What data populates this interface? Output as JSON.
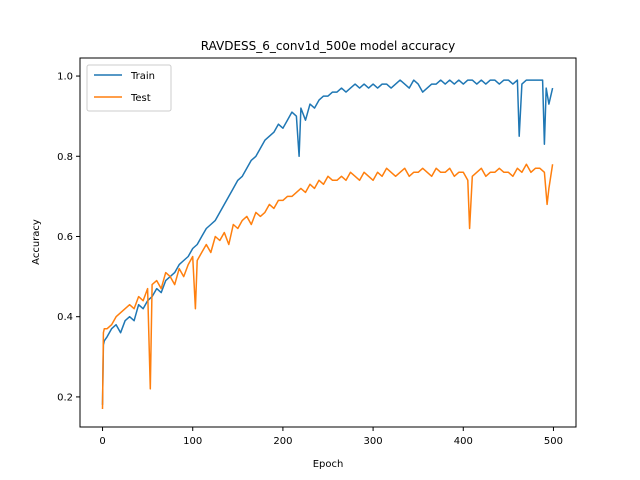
{
  "chart_data": {
    "type": "line",
    "title": "RAVDESS_6_conv1d_500e model accuracy",
    "xlabel": "Epoch",
    "ylabel": "Accuracy",
    "xlim": [
      -25,
      525
    ],
    "ylim": [
      0.125,
      1.045
    ],
    "xticks": [
      0,
      100,
      200,
      300,
      400,
      500
    ],
    "yticks": [
      0.2,
      0.4,
      0.6,
      0.8,
      1.0
    ],
    "xtick_labels": [
      "0",
      "100",
      "200",
      "300",
      "400",
      "500"
    ],
    "ytick_labels": [
      "0.2",
      "0.4",
      "0.6",
      "0.8",
      "1.0"
    ],
    "grid": false,
    "legend_position": "top-left",
    "series": [
      {
        "name": "Train",
        "color": "#1f77b4",
        "x": [
          0,
          1,
          2,
          5,
          10,
          15,
          20,
          25,
          30,
          35,
          40,
          45,
          50,
          55,
          60,
          65,
          70,
          75,
          80,
          85,
          90,
          95,
          100,
          105,
          110,
          115,
          120,
          125,
          130,
          135,
          140,
          145,
          150,
          155,
          160,
          165,
          170,
          175,
          180,
          185,
          190,
          195,
          200,
          205,
          210,
          215,
          218,
          220,
          225,
          230,
          235,
          240,
          245,
          250,
          255,
          260,
          265,
          270,
          275,
          280,
          285,
          290,
          295,
          300,
          305,
          310,
          315,
          320,
          325,
          330,
          335,
          340,
          345,
          350,
          355,
          360,
          365,
          370,
          375,
          380,
          385,
          390,
          395,
          400,
          405,
          410,
          415,
          420,
          425,
          430,
          435,
          440,
          445,
          450,
          455,
          460,
          462,
          465,
          470,
          475,
          480,
          485,
          488,
          490,
          492,
          495,
          499
        ],
        "values": [
          0.18,
          0.33,
          0.34,
          0.35,
          0.37,
          0.38,
          0.36,
          0.39,
          0.4,
          0.39,
          0.43,
          0.42,
          0.44,
          0.45,
          0.47,
          0.46,
          0.49,
          0.5,
          0.51,
          0.53,
          0.54,
          0.55,
          0.57,
          0.58,
          0.6,
          0.62,
          0.63,
          0.64,
          0.66,
          0.68,
          0.7,
          0.72,
          0.74,
          0.75,
          0.77,
          0.79,
          0.8,
          0.82,
          0.84,
          0.85,
          0.86,
          0.88,
          0.87,
          0.89,
          0.91,
          0.9,
          0.8,
          0.92,
          0.89,
          0.93,
          0.92,
          0.94,
          0.95,
          0.95,
          0.96,
          0.96,
          0.97,
          0.96,
          0.97,
          0.98,
          0.97,
          0.98,
          0.97,
          0.98,
          0.97,
          0.98,
          0.98,
          0.97,
          0.98,
          0.99,
          0.98,
          0.97,
          0.99,
          0.98,
          0.96,
          0.97,
          0.98,
          0.98,
          0.99,
          0.98,
          0.99,
          0.98,
          0.99,
          0.98,
          0.99,
          0.99,
          0.98,
          0.99,
          0.98,
          0.99,
          0.99,
          0.98,
          0.99,
          0.99,
          0.98,
          0.99,
          0.85,
          0.98,
          0.99,
          0.99,
          0.99,
          0.99,
          0.99,
          0.83,
          0.97,
          0.93,
          0.97
        ]
      },
      {
        "name": "Test",
        "color": "#ff7f0e",
        "x": [
          0,
          1,
          2,
          5,
          10,
          15,
          20,
          25,
          30,
          35,
          40,
          45,
          50,
          53,
          55,
          60,
          65,
          70,
          75,
          80,
          85,
          90,
          95,
          100,
          103,
          105,
          110,
          115,
          120,
          125,
          130,
          135,
          140,
          145,
          150,
          155,
          160,
          165,
          170,
          175,
          180,
          185,
          190,
          195,
          200,
          205,
          210,
          215,
          220,
          225,
          230,
          235,
          240,
          245,
          250,
          255,
          260,
          265,
          270,
          275,
          280,
          285,
          290,
          295,
          300,
          305,
          310,
          315,
          320,
          325,
          330,
          335,
          340,
          345,
          350,
          355,
          360,
          365,
          370,
          375,
          380,
          385,
          390,
          395,
          400,
          405,
          407,
          410,
          415,
          420,
          425,
          430,
          435,
          440,
          445,
          450,
          455,
          460,
          465,
          470,
          475,
          480,
          485,
          490,
          493,
          495,
          499
        ],
        "values": [
          0.17,
          0.36,
          0.37,
          0.37,
          0.38,
          0.4,
          0.41,
          0.42,
          0.43,
          0.42,
          0.45,
          0.44,
          0.47,
          0.22,
          0.48,
          0.49,
          0.47,
          0.51,
          0.5,
          0.48,
          0.52,
          0.5,
          0.53,
          0.55,
          0.42,
          0.54,
          0.56,
          0.58,
          0.56,
          0.6,
          0.59,
          0.61,
          0.58,
          0.63,
          0.62,
          0.64,
          0.65,
          0.63,
          0.66,
          0.65,
          0.66,
          0.68,
          0.67,
          0.69,
          0.69,
          0.7,
          0.7,
          0.71,
          0.72,
          0.71,
          0.73,
          0.72,
          0.74,
          0.73,
          0.75,
          0.74,
          0.74,
          0.75,
          0.74,
          0.76,
          0.75,
          0.74,
          0.76,
          0.75,
          0.74,
          0.76,
          0.75,
          0.77,
          0.76,
          0.75,
          0.76,
          0.77,
          0.75,
          0.76,
          0.76,
          0.77,
          0.76,
          0.75,
          0.77,
          0.76,
          0.76,
          0.77,
          0.75,
          0.76,
          0.76,
          0.74,
          0.62,
          0.75,
          0.76,
          0.77,
          0.75,
          0.76,
          0.76,
          0.77,
          0.76,
          0.76,
          0.75,
          0.77,
          0.76,
          0.78,
          0.76,
          0.77,
          0.77,
          0.76,
          0.68,
          0.72,
          0.78
        ]
      }
    ]
  }
}
